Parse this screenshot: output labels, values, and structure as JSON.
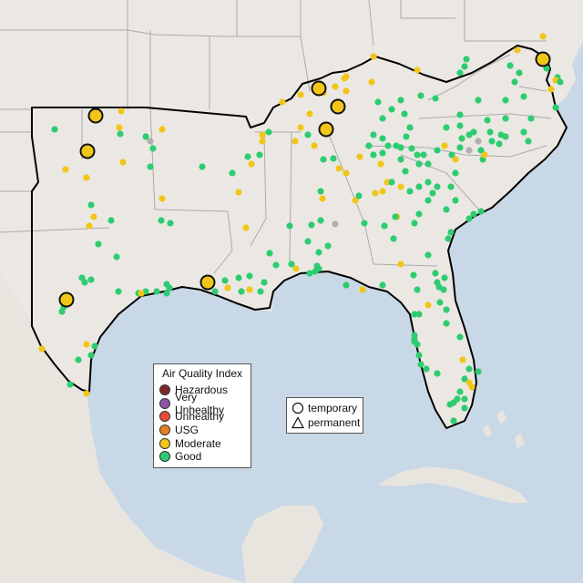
{
  "colors": {
    "ocean": "#c9d8e6",
    "land": "#ebe8e3",
    "land_other": "#e8e5df",
    "border": "#aaaaaa",
    "region_outline": "#000000",
    "aqi": {
      "hazardous": "#7e2a2a",
      "very_unhealthy": "#8e52a8",
      "unhealthy": "#e84b3a",
      "usg": "#e67e22",
      "moderate": "#f2c618",
      "good": "#2ecc71",
      "no_data": "#b0b0b0"
    }
  },
  "legend": {
    "title": "Air Quality Index",
    "items": [
      {
        "key": "hazardous",
        "label": "Hazardous"
      },
      {
        "key": "very_unhealthy",
        "label": "Very Unhealthy"
      },
      {
        "key": "unhealthy",
        "label": "Unhealthy"
      },
      {
        "key": "usg",
        "label": "USG"
      },
      {
        "key": "moderate",
        "label": "Moderate"
      },
      {
        "key": "good",
        "label": "Good"
      }
    ]
  },
  "monitor_types": [
    {
      "key": "temporary",
      "label": "temporary",
      "shape": "circle"
    },
    {
      "key": "permanent",
      "label": "permanent",
      "shape": "triangle"
    }
  ]
}
